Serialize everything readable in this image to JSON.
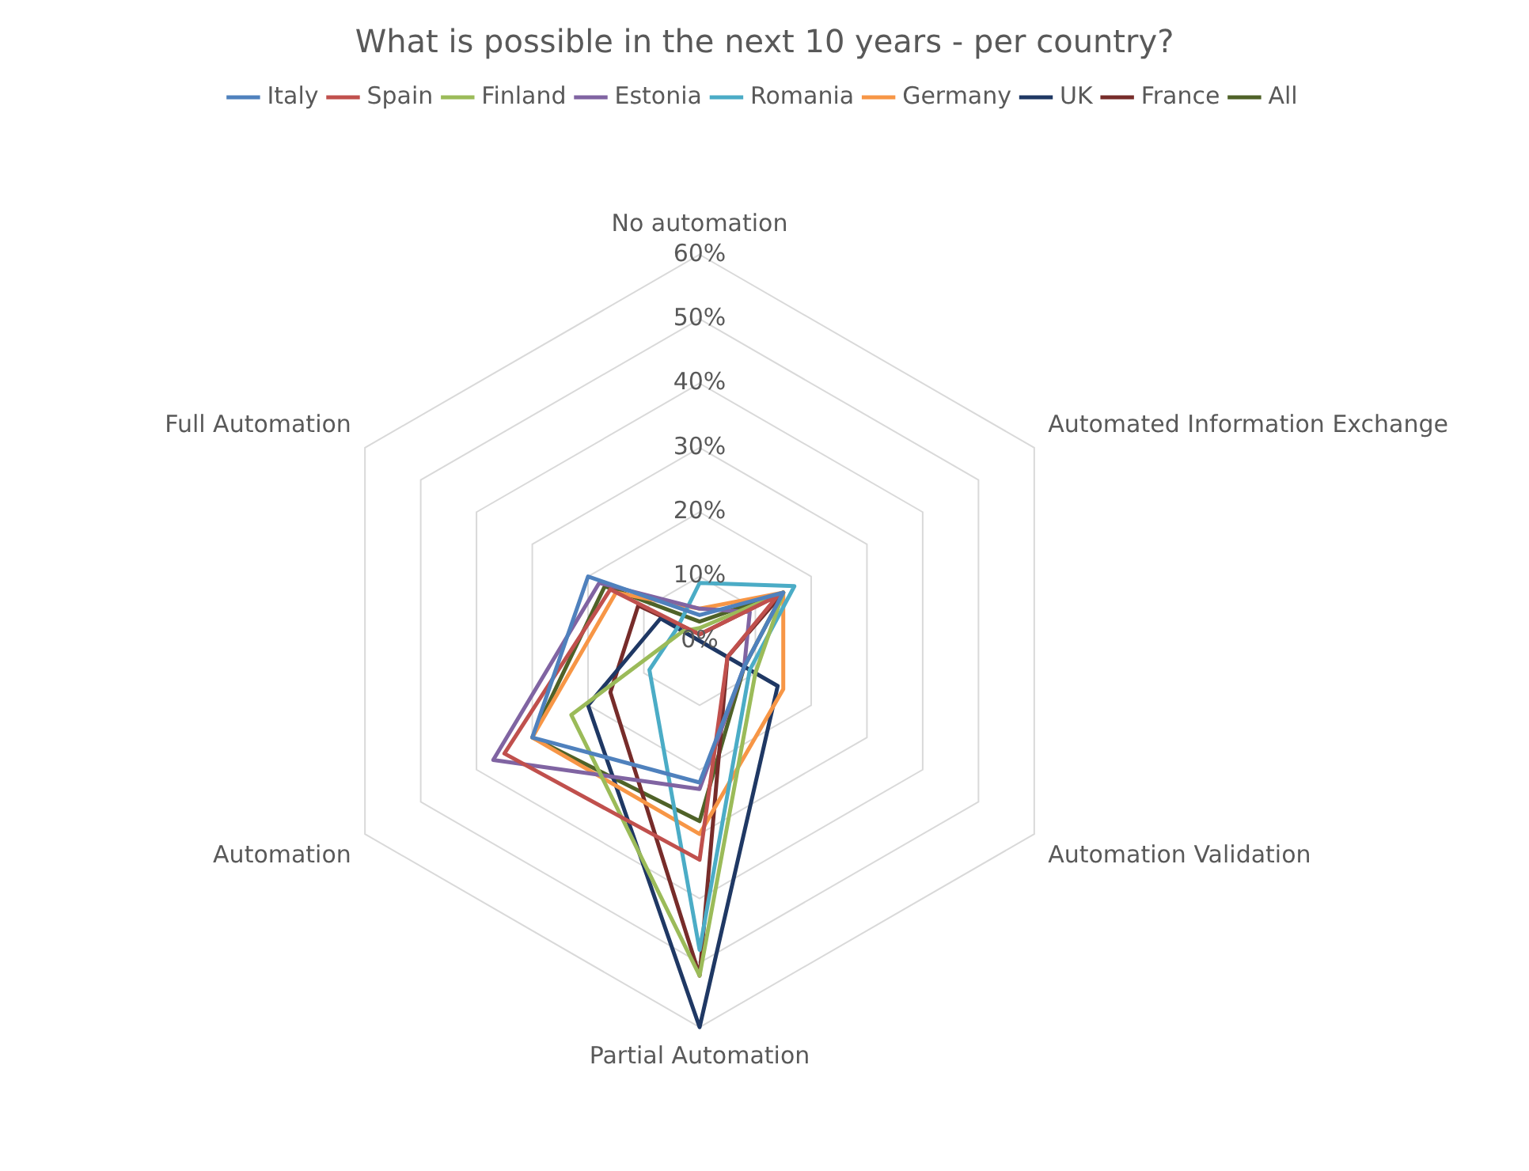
{
  "chart_data": {
    "type": "radar",
    "title": "What is possible in the next 10 years - per country?",
    "categories": [
      "No automation",
      "Automated Information Exchange",
      "Automation Validation",
      "Partial Automation",
      "Automation",
      "Full Automation"
    ],
    "series": [
      {
        "name": "Italy",
        "color": "#4f81bd",
        "values": [
          4,
          15,
          8,
          22,
          30,
          20
        ]
      },
      {
        "name": "Spain",
        "color": "#c0504d",
        "values": [
          1,
          14,
          5,
          34,
          35,
          16
        ]
      },
      {
        "name": "Finland",
        "color": "#9bbb59",
        "values": [
          2,
          15,
          10,
          52,
          23,
          3
        ]
      },
      {
        "name": "Estonia",
        "color": "#8064a2",
        "values": [
          5,
          9,
          8,
          23,
          37,
          18
        ]
      },
      {
        "name": "Romania",
        "color": "#4bacc6",
        "values": [
          9,
          17,
          9,
          48,
          9,
          4
        ]
      },
      {
        "name": "Germany",
        "color": "#f79646",
        "values": [
          5,
          15,
          15,
          30,
          30,
          15
        ]
      },
      {
        "name": "UK",
        "color": "#1f3864",
        "values": [
          0,
          0,
          14,
          60,
          20,
          7
        ]
      },
      {
        "name": "France",
        "color": "#772c2a",
        "values": [
          1,
          15,
          5,
          52,
          16,
          11
        ]
      },
      {
        "name": "All",
        "color": "#4f6228",
        "values": [
          3,
          15,
          8,
          28,
          30,
          17
        ]
      }
    ],
    "ylim": [
      0,
      60
    ],
    "yticks": [
      {
        "value": 0,
        "label": "0%"
      },
      {
        "value": 10,
        "label": "10%"
      },
      {
        "value": 20,
        "label": "20%"
      },
      {
        "value": 30,
        "label": "30%"
      },
      {
        "value": 40,
        "label": "40%"
      },
      {
        "value": 50,
        "label": "50%"
      },
      {
        "value": 60,
        "label": "60%"
      }
    ],
    "grid": true,
    "legend": "top",
    "marker": "none"
  }
}
